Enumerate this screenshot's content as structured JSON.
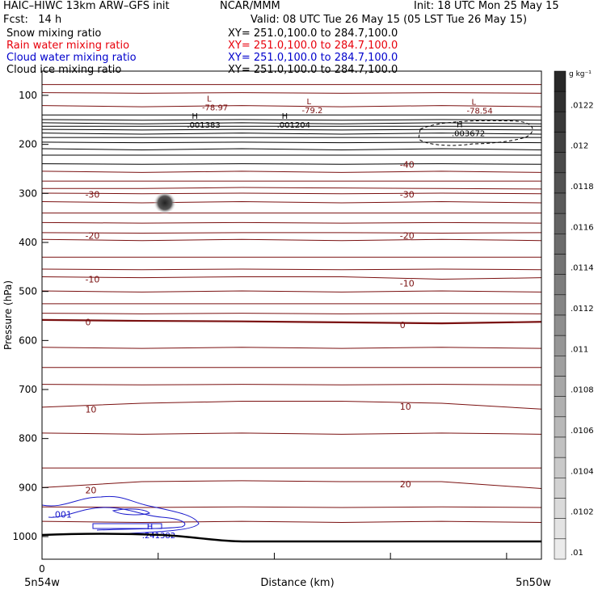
{
  "header": {
    "model": "HAIC–HIWC 13km ARW–GFS init",
    "org": "NCAR/MMM",
    "init": "Init: 18 UTC Mon 25 May 15",
    "fcst": "Fcst:   14 h",
    "valid": "Valid: 08 UTC Tue 26 May 15 (05 LST Tue 26 May 15)"
  },
  "legend": [
    {
      "name": "Snow mixing ratio",
      "xy": "XY= 251.0,100.0 to 284.7,100.0",
      "color": "#000000"
    },
    {
      "name": "Rain water mixing ratio",
      "xy": "XY= 251.0,100.0 to 284.7,100.0",
      "color": "#e8000b"
    },
    {
      "name": "Cloud water mixing ratio",
      "xy": "XY= 251.0,100.0 to 284.7,100.0",
      "color": "#0000cc"
    },
    {
      "name": "Cloud ice mixing ratio",
      "xy": "XY= 251.0,100.0 to 284.7,100.0",
      "color": "#000000"
    }
  ],
  "chart_data": {
    "type": "line",
    "ylabel": "Pressure (hPa)",
    "xlabel": "Distance (km)",
    "x_left_label": "5n54w",
    "x_center_label": "0",
    "x_right_label": "5n50w",
    "y_ticks": [
      100,
      200,
      300,
      400,
      500,
      600,
      700,
      800,
      900,
      1000
    ],
    "ylim": [
      50,
      1050
    ],
    "xlim": [
      0,
      100
    ],
    "temperature_color": "#7a1010",
    "temperature_contours": [
      {
        "value": -30,
        "label": "-30",
        "p": [
          290,
          290,
          288,
          289,
          290,
          291
        ]
      },
      {
        "value": -20,
        "label": "-20",
        "p": [
          380,
          381,
          380,
          380,
          381,
          380
        ]
      },
      {
        "value": -10,
        "label": "-10",
        "p": [
          470,
          472,
          470,
          470,
          475,
          472
        ]
      },
      {
        "value": 0,
        "label": "0",
        "p": [
          558,
          560,
          561,
          563,
          565,
          562
        ]
      },
      {
        "value": 10,
        "label": "10",
        "p": [
          736,
          728,
          724,
          724,
          728,
          740
        ]
      },
      {
        "value": 20,
        "label": "20",
        "p": [
          900,
          888,
          886,
          888,
          888,
          902
        ]
      }
    ],
    "temperature_labels": [
      {
        "text": "-30",
        "x": 8,
        "p": 302
      },
      {
        "text": "-30",
        "x": 71,
        "p": 302
      },
      {
        "text": "-20",
        "x": 8,
        "p": 386
      },
      {
        "text": "-20",
        "x": 71,
        "p": 386
      },
      {
        "text": "-10",
        "x": 8,
        "p": 475
      },
      {
        "text": "-10",
        "x": 71,
        "p": 483
      },
      {
        "text": "0",
        "x": 8,
        "p": 562
      },
      {
        "text": "0",
        "x": 71,
        "p": 568
      },
      {
        "text": "10",
        "x": 8,
        "p": 740
      },
      {
        "text": "10",
        "x": 71,
        "p": 735
      },
      {
        "text": "20",
        "x": 8,
        "p": 905
      },
      {
        "text": "20",
        "x": 71,
        "p": 893
      },
      {
        "text": "-40",
        "x": 71,
        "p": 241
      }
    ],
    "extrema": [
      {
        "type": "L",
        "value": "-78.97",
        "x": 33,
        "p": 112,
        "color": "#7a1010"
      },
      {
        "type": "L",
        "value": "-79.2",
        "x": 53,
        "p": 118,
        "color": "#7a1010"
      },
      {
        "type": "L",
        "value": "-78.54",
        "x": 86,
        "p": 119,
        "color": "#7a1010"
      },
      {
        "type": "H",
        "value": ".001383",
        "x": 30,
        "p": 148,
        "color": "#000000"
      },
      {
        "type": "H",
        "value": ".001204",
        "x": 48,
        "p": 148,
        "color": "#000000"
      },
      {
        "type": "H",
        "value": ".003672",
        "x": 83,
        "p": 165,
        "color": "#000000"
      },
      {
        "type": "H",
        "value": ".241382",
        "x": 21,
        "p": 985,
        "color": "#0000cc"
      }
    ],
    "cloud_water_labels": [
      {
        "text": ".001",
        "x": 2,
        "p": 955
      }
    ],
    "colorbar": {
      "unit": "g kg⁻¹",
      "labels": [
        ".0122",
        ".012",
        ".0118",
        ".0116",
        ".0114",
        ".0112",
        ".011",
        ".0108",
        ".0106",
        ".0104",
        ".0102",
        ".01"
      ]
    }
  }
}
